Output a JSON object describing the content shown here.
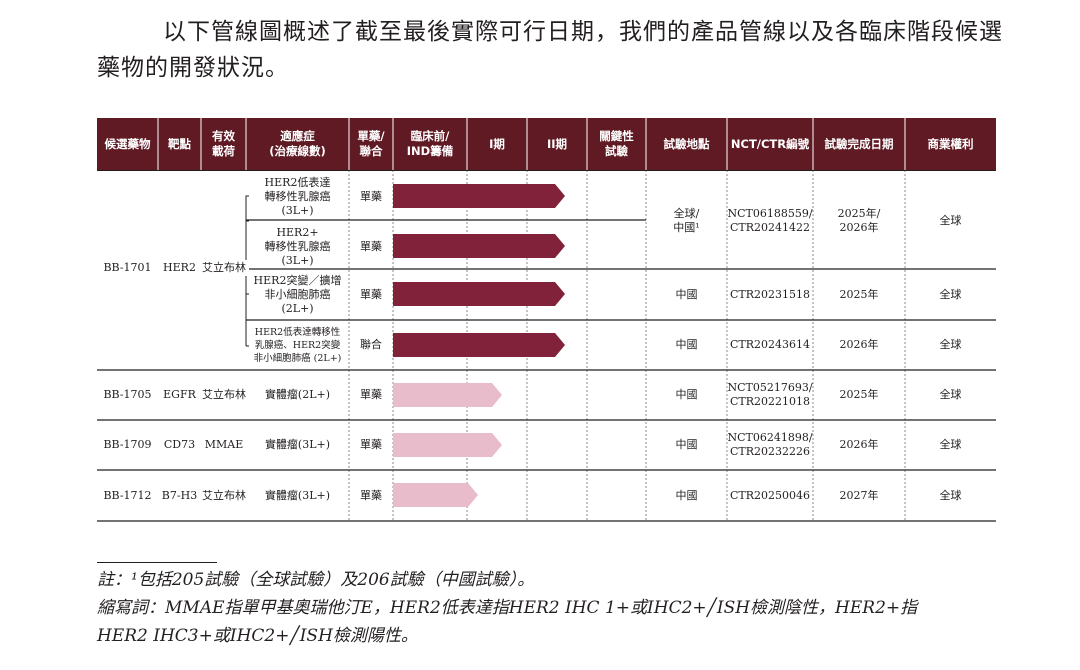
{
  "intro": {
    "line1": "以下管線圖概述了截至最後實際可行日期，我們的產品管線以及各臨床階段候選",
    "line2": "藥物的開發狀況。"
  },
  "table": {
    "header_bg": "#5f1a24",
    "headers": {
      "candidate": "候選藥物",
      "target": "靶點",
      "payload": [
        "有效",
        "載荷"
      ],
      "indication": [
        "適應症",
        "(治療線數)"
      ],
      "regimen": [
        "單藥/",
        "聯合"
      ],
      "preclinical": [
        "臨床前/",
        "IND籌備"
      ],
      "phase1": "I期",
      "phase2": "II期",
      "pivotal": [
        "關鍵性",
        "試驗"
      ],
      "location": "試驗地點",
      "nct": "NCT/CTR編號",
      "completion": "試驗完成日期",
      "rights": "商業權利"
    },
    "candidates": [
      {
        "name": "BB-1701",
        "target": "HER2",
        "payload": "艾立布林"
      },
      {
        "name": "BB-1705",
        "target": "EGFR",
        "payload": "艾立布林"
      },
      {
        "name": "BB-1709",
        "target": "CD73",
        "payload": "MMAE"
      },
      {
        "name": "BB-1712",
        "target": "B7-H3",
        "payload": "艾立布林"
      }
    ],
    "rows": [
      {
        "indication": [
          "HER2低表達",
          "轉移性乳腺癌",
          "(3L+)"
        ],
        "regimen": "單藥",
        "progress": "phase2",
        "bar_color": "#82223a"
      },
      {
        "indication": [
          "HER2+",
          "轉移性乳腺癌",
          "(3L+)"
        ],
        "regimen": "單藥",
        "progress": "phase2",
        "bar_color": "#82223a"
      },
      {
        "indication": [
          "HER2突變／擴增",
          "非小細胞肺癌",
          "(2L+)"
        ],
        "regimen": "單藥",
        "progress": "phase2",
        "bar_color": "#82223a"
      },
      {
        "indication": [
          "HER2低表達轉移性",
          "乳腺癌、HER2突變",
          "非小細胞肺癌 (2L+)"
        ],
        "regimen": "聯合",
        "progress": "phase2",
        "bar_color": "#82223a"
      },
      {
        "indication": [
          "實體瘤(2L+)"
        ],
        "regimen": "單藥",
        "progress": "phase1",
        "bar_color": "#e8bccb"
      },
      {
        "indication": [
          "實體瘤(3L+)"
        ],
        "regimen": "單藥",
        "progress": "phase1",
        "bar_color": "#e8bccb"
      },
      {
        "indication": [
          "實體瘤(3L+)"
        ],
        "regimen": "單藥",
        "progress": "phase1_partial",
        "bar_color": "#e8bccb"
      }
    ],
    "trials": [
      {
        "location": [
          "全球/",
          "中國¹"
        ],
        "nct": [
          "NCT06188559/",
          "CTR20241422"
        ],
        "completion": [
          "2025年/",
          "2026年"
        ],
        "rights": "全球"
      },
      {
        "location": [
          "中國"
        ],
        "nct": [
          "CTR20231518"
        ],
        "completion": [
          "2025年"
        ],
        "rights": "全球"
      },
      {
        "location": [
          "中國"
        ],
        "nct": [
          "CTR20243614"
        ],
        "completion": [
          "2026年"
        ],
        "rights": "全球"
      },
      {
        "location": [
          "中國"
        ],
        "nct": [
          "NCT05217693/",
          "CTR20221018"
        ],
        "completion": [
          "2025年"
        ],
        "rights": "全球"
      },
      {
        "location": [
          "中國"
        ],
        "nct": [
          "NCT06241898/",
          "CTR20232226"
        ],
        "completion": [
          "2026年"
        ],
        "rights": "全球"
      },
      {
        "location": [
          "中國"
        ],
        "nct": [
          "CTR20250046"
        ],
        "completion": [
          "2027年"
        ],
        "rights": "全球"
      }
    ]
  },
  "notes": {
    "note": "註：¹包括205試驗（全球試驗）及206試驗（中國試驗）。",
    "abbr1": "縮寫詞：MMAE指單甲基奧瑞他汀E，HER2低表達指HER2 IHC 1+或IHC2+╱ISH檢測陰性，HER2+指",
    "abbr2": "HER2 IHC3+或IHC2+╱ISH檢測陽性。"
  }
}
